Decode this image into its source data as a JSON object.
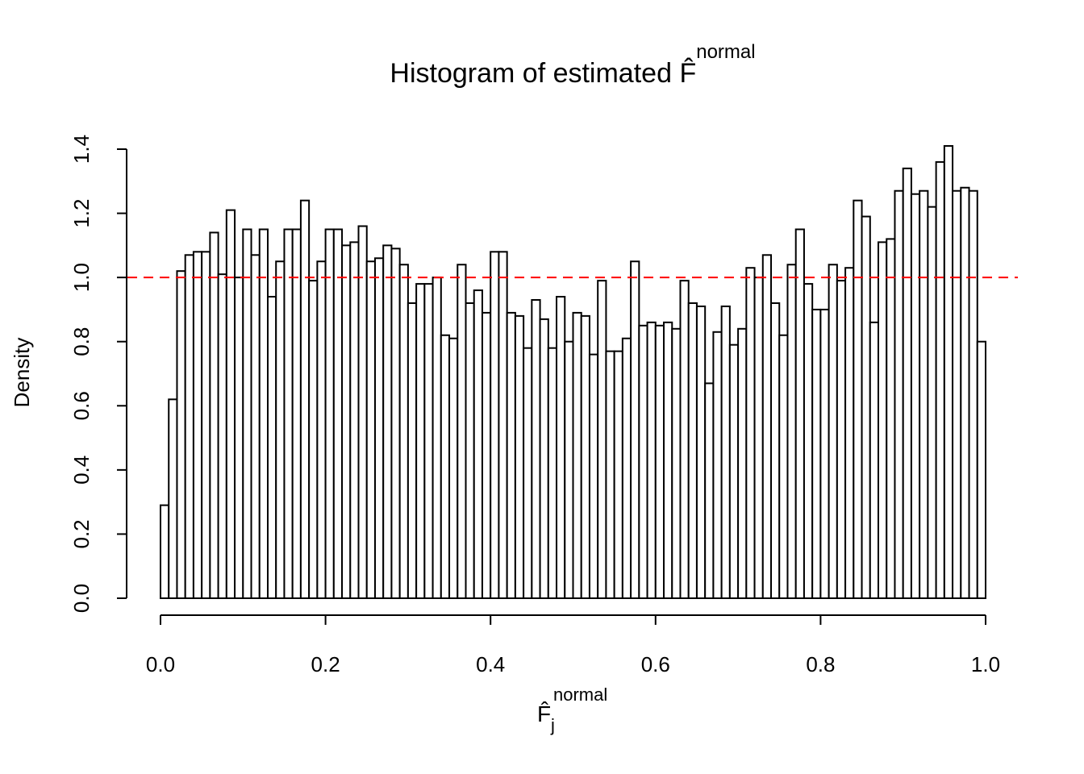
{
  "chart_data": {
    "type": "histogram",
    "title": "Histogram of estimated ",
    "title_symbol": "F̂",
    "title_superscript": "normal",
    "xlabel": {
      "base": "F̂",
      "sup": "normal",
      "sub": "j"
    },
    "ylabel": "Density",
    "bins": [
      0,
      0.01,
      0.02,
      0.03,
      0.04,
      0.05,
      0.06,
      0.07,
      0.08,
      0.09,
      0.1,
      0.11,
      0.12,
      0.13,
      0.14,
      0.15,
      0.16,
      0.17,
      0.18,
      0.19,
      0.2,
      0.21,
      0.22,
      0.23,
      0.24,
      0.25,
      0.26,
      0.27,
      0.28,
      0.29,
      0.3,
      0.31,
      0.32,
      0.33,
      0.34,
      0.35,
      0.36,
      0.37,
      0.38,
      0.39,
      0.4,
      0.41,
      0.42,
      0.43,
      0.44,
      0.45,
      0.46,
      0.47,
      0.48,
      0.49,
      0.5,
      0.51,
      0.52,
      0.53,
      0.54,
      0.55,
      0.56,
      0.57,
      0.58,
      0.59,
      0.6,
      0.61,
      0.62,
      0.63,
      0.64,
      0.65,
      0.66,
      0.67,
      0.68,
      0.69,
      0.7,
      0.71,
      0.72,
      0.73,
      0.74,
      0.75,
      0.76,
      0.77,
      0.78,
      0.79,
      0.8,
      0.81,
      0.82,
      0.83,
      0.84,
      0.85,
      0.86,
      0.87,
      0.88,
      0.89,
      0.9,
      0.91,
      0.92,
      0.93,
      0.94,
      0.95,
      0.96,
      0.97,
      0.98,
      0.99,
      1
    ],
    "values": [
      0.29,
      0.62,
      1.02,
      1.07,
      1.08,
      1.08,
      1.14,
      1.01,
      1.21,
      1.0,
      1.15,
      1.07,
      1.15,
      0.94,
      1.05,
      1.15,
      1.15,
      1.24,
      0.99,
      1.05,
      1.15,
      1.15,
      1.1,
      1.11,
      1.16,
      1.05,
      1.06,
      1.1,
      1.09,
      1.04,
      0.92,
      0.98,
      0.98,
      1.0,
      0.82,
      0.81,
      1.04,
      0.92,
      0.96,
      0.89,
      1.08,
      1.08,
      0.89,
      0.88,
      0.78,
      0.93,
      0.87,
      0.78,
      0.94,
      0.8,
      0.89,
      0.88,
      0.76,
      0.99,
      0.77,
      0.77,
      0.81,
      1.05,
      0.85,
      0.86,
      0.85,
      0.86,
      0.84,
      0.99,
      0.92,
      0.91,
      0.67,
      0.83,
      0.91,
      0.79,
      0.84,
      1.03,
      1.0,
      1.07,
      0.92,
      0.82,
      1.04,
      1.15,
      0.98,
      0.9,
      0.9,
      1.04,
      0.99,
      1.03,
      1.24,
      1.19,
      0.86,
      1.11,
      1.12,
      1.27,
      1.34,
      1.26,
      1.27,
      1.22,
      1.36,
      1.41,
      1.27,
      1.28,
      1.27,
      0.8
    ],
    "fill": "#ffffff",
    "edgecolor": "#000000",
    "xlim": [
      0,
      1
    ],
    "xticks": [
      {
        "value": 0,
        "label": "0.0"
      },
      0.2,
      0.4,
      0.6,
      0.8,
      {
        "value": 1,
        "label": "1.0"
      }
    ],
    "ylim": [
      0,
      1.4
    ],
    "yticks": [
      {
        "value": 0,
        "label": "0.0"
      },
      0.2,
      0.4,
      0.6,
      0.8,
      {
        "value": 1,
        "label": "1.0"
      },
      1.2,
      1.4
    ],
    "hline": {
      "value": 1,
      "color": "#ff0000",
      "style": "dashed"
    }
  }
}
